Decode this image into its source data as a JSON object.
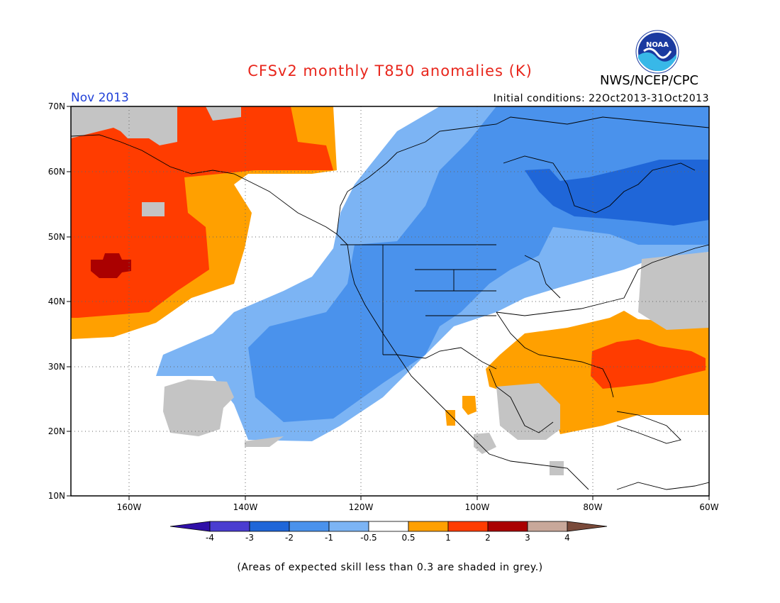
{
  "title": "CFSv2 monthly T850 anomalies (K)",
  "agency": "NWS/NCEP/CPC",
  "logo_text": "NOAA",
  "forecast_month": "Nov 2013",
  "initial_conditions": "Initial conditions: 22Oct2013-31Oct2013",
  "footnote": "(Areas of expected skill less than 0.3 are shaded in grey.)",
  "map": {
    "lat_range": [
      10,
      70
    ],
    "lon_range": [
      "170W",
      "60W"
    ],
    "lat_labels": [
      "70N",
      "60N",
      "50N",
      "40N",
      "30N",
      "20N",
      "10N"
    ],
    "lon_labels": [
      "160W",
      "140W",
      "120W",
      "100W",
      "80W",
      "60W"
    ],
    "grid": "dotted"
  },
  "legend": {
    "tick_labels": [
      "-4",
      "-3",
      "-2",
      "-1",
      "-0.5",
      "0.5",
      "1",
      "2",
      "3",
      "4"
    ],
    "colors": [
      "#3010a8",
      "#4a3dd0",
      "#1f66d8",
      "#4a92ec",
      "#7cb4f4",
      "#ffffff",
      "#ffa000",
      "#ff3c00",
      "#aa0000",
      "#c8a89a",
      "#7a4a3a"
    ],
    "grey_skill_color": "#c4c4c4"
  }
}
